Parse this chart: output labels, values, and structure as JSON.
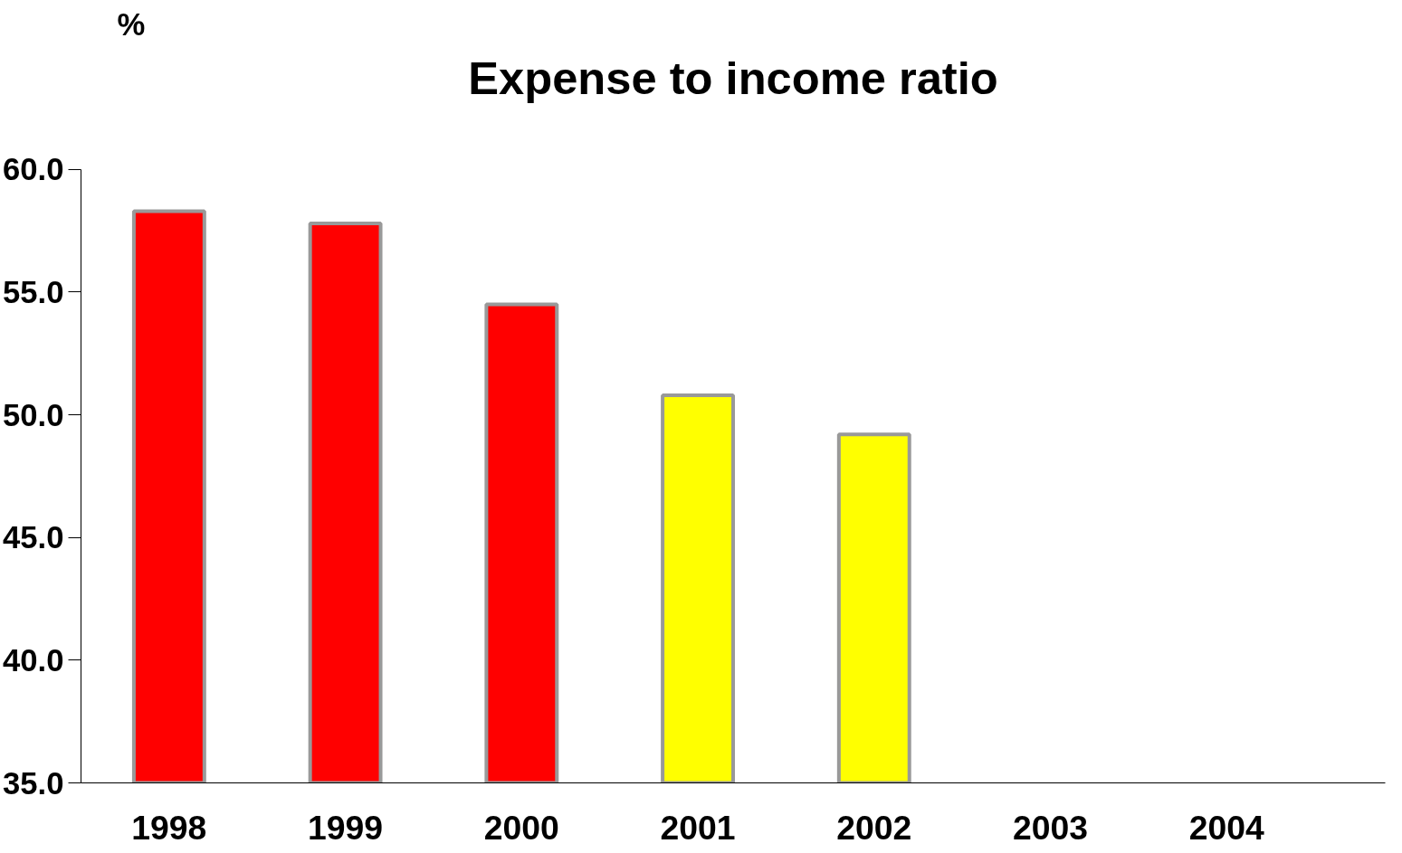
{
  "chart_data": {
    "type": "bar",
    "title": "Expense to income ratio",
    "ylabel": "%",
    "categories": [
      "1998",
      "1999",
      "2000",
      "2001",
      "2002",
      "2003",
      "2004"
    ],
    "values": [
      58.3,
      57.8,
      54.5,
      50.8,
      49.2,
      null,
      null
    ],
    "colors": [
      "#ff0000",
      "#ff0000",
      "#ff0000",
      "#ffff00",
      "#ffff00",
      null,
      null
    ],
    "ylim": [
      35,
      60
    ],
    "yticks": [
      {
        "value": 35,
        "label": "35.0"
      },
      {
        "value": 40,
        "label": "40.0"
      },
      {
        "value": 45,
        "label": "45.0"
      },
      {
        "value": 50,
        "label": "50.0"
      },
      {
        "value": 55,
        "label": "55.0"
      },
      {
        "value": 60,
        "label": "60.0"
      }
    ],
    "grid": false
  }
}
